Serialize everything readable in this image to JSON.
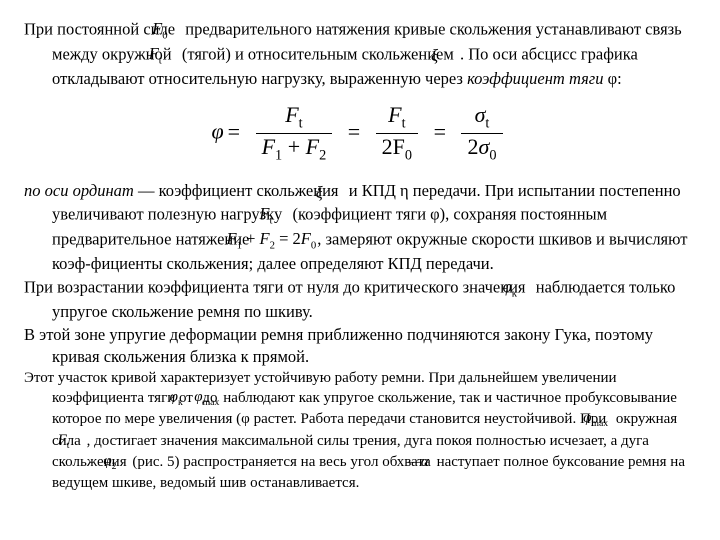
{
  "p1": {
    "t0": "При постоянной силе ",
    "sym0": "F",
    "sym0sub": "0",
    "t1": " предварительного натяжения кривые скольжения устанавливают связь между окружной ",
    "sym1": "F",
    "sym1sub": "t",
    "t2": " (тягой) и относительным скольжением ",
    "sym2": "ξ",
    "t3": ". По оси абсцисс графика откладывают относительную нагрузку, выраженную через ",
    "i0": "коэффициент тяги",
    "t4": " φ:"
  },
  "eq": {
    "lhs": "φ",
    "n1": "F",
    "n1sub": "t",
    "d1a": "F",
    "d1asub": "1",
    "d1plus": " + ",
    "d1b": "F",
    "d1bsub": "2",
    "n2": "F",
    "n2sub": "t",
    "d2": "2F",
    "d2sub": "0",
    "n3": "σ",
    "n3sub": "t",
    "d3": "2σ",
    "d3sub": "0"
  },
  "p2": {
    "i0": "по оси ординат",
    "t0": " — коэффициент скольжения ",
    "sym0": "ξ",
    "t1": " и КПД η передачи. При испытании постепенно увеличивают полезную нагрузку ",
    "sym1": "F",
    "sym1sub": "t",
    "t2": " (коэффициент тяги φ), сохраняя постоянным предварительное натяжение ",
    "sym2a": "F",
    "sym2asub": "1",
    "plus": " + ",
    "sym2b": "F",
    "sym2bsub": "2",
    "eq": " = 2",
    "sym2c": "F",
    "sym2csub": "0",
    "t3": ", замеряют окружные скорости шкивов и вычисляют коэф-фициенты скольжения; далее определяют КПД передачи."
  },
  "p3": {
    "t0": "При возрастании коэффициента тяги от нуля до критического значения ",
    "sym0": "φ",
    "sym0sub": "к",
    "t1": " наблюдается только упругое скольжение ремня по шкиву."
  },
  "p4": {
    "t0": "В этой зоне упругие деформации ремня приближенно подчиняются закону Гука, поэтому кривая скольжения близка к прямой."
  },
  "p5": {
    "t0": "Этот участок кривой характеризует устойчивую работу ремни. При дальнейшем увеличении коэффициента тяги от ",
    "sym0": "φ",
    "sym0sub": "к",
    "t1": " до ",
    "sym1": "φ",
    "sym1sub": "max",
    "t2": "наблюдают как упругое скольжение, так и частичное пробуксовывание которое по мере увеличения (φ растет. Работа передачи становится неустойчивой. При ",
    "sym2": "φ",
    "sym2sub": "max",
    "t3": " окружная сила ",
    "sym3": "F",
    "sym3sub": "t",
    "t4": ", достигает значения максимальной силы трения, дуга покоя полностью исчезает, а дуга скольжения ",
    "sym4": "φ",
    "sym4sub": "2",
    "t5": "(рис. 5) распространяется на весь угол обхвата ",
    "sym5": "—α",
    "t6": "наступает полное буксование ремня на ведущем шкиве, ведомый шив останавливается."
  }
}
